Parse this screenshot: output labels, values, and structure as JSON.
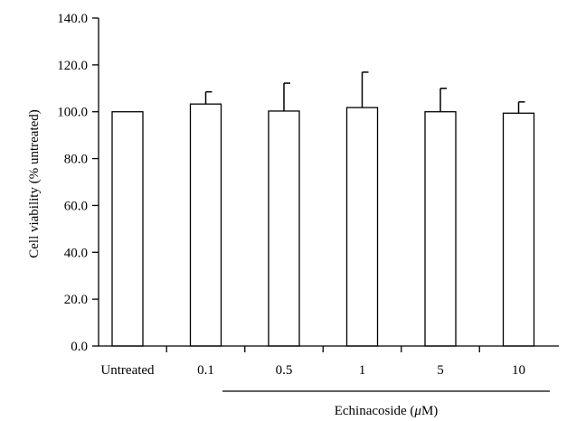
{
  "chart_data": {
    "type": "bar",
    "title": "",
    "ylabel": "Cell viability (% untreated)",
    "xlabel": "",
    "group_label_prefix": "Echinacoside (",
    "group_label_unit": "μ",
    "group_label_suffix": "M)",
    "categories": [
      "Untreated",
      "0.1",
      "0.5",
      "1",
      "5",
      "10"
    ],
    "values": [
      100.0,
      103.3,
      100.3,
      101.8,
      100.0,
      99.4
    ],
    "error_plus": [
      0,
      5.2,
      11.9,
      15.1,
      10.0,
      4.8
    ],
    "ylim": [
      0,
      140
    ],
    "yticks": [
      "0.0",
      "20.0",
      "40.0",
      "60.0",
      "80.0",
      "100.0",
      "120.0",
      "140.0"
    ],
    "ytick_values": [
      0,
      20,
      40,
      60,
      80,
      100,
      120,
      140
    ],
    "grouped_categories": [
      "0.1",
      "0.5",
      "1",
      "5",
      "10"
    ],
    "bar_fill": "#ffffff",
    "bar_stroke": "#000000",
    "grid": false,
    "legend": "none"
  }
}
